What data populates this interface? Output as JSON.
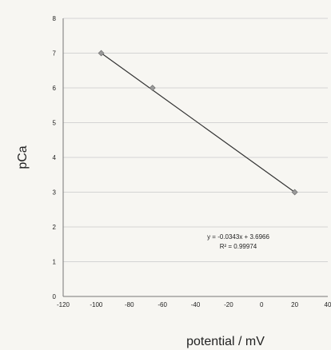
{
  "chart_data": {
    "type": "scatter",
    "xlabel": "potential / mV",
    "ylabel": "pCa",
    "xlim": [
      -120,
      40
    ],
    "ylim": [
      0,
      8
    ],
    "x_ticks": [
      "-120",
      "-100",
      "-80",
      "-60",
      "-40",
      "-20",
      "0",
      "20",
      "40"
    ],
    "y_ticks": [
      "0",
      "1",
      "2",
      "3",
      "4",
      "5",
      "6",
      "7",
      "8"
    ],
    "grid": true,
    "series": [
      {
        "x": [
          -97,
          -66,
          20
        ],
        "y": [
          7,
          6,
          3
        ]
      }
    ],
    "trendline": {
      "x": [
        -97,
        20
      ],
      "y": [
        7,
        3
      ]
    },
    "annotation": {
      "equation": "y = -0.0343x + 3.6966",
      "r_squared": "R² = 0.99974"
    },
    "colors": {
      "line": "#333333",
      "marker": "#9a9a9a",
      "grid": "#d4d4d4",
      "background": "#f7f6f2"
    }
  }
}
